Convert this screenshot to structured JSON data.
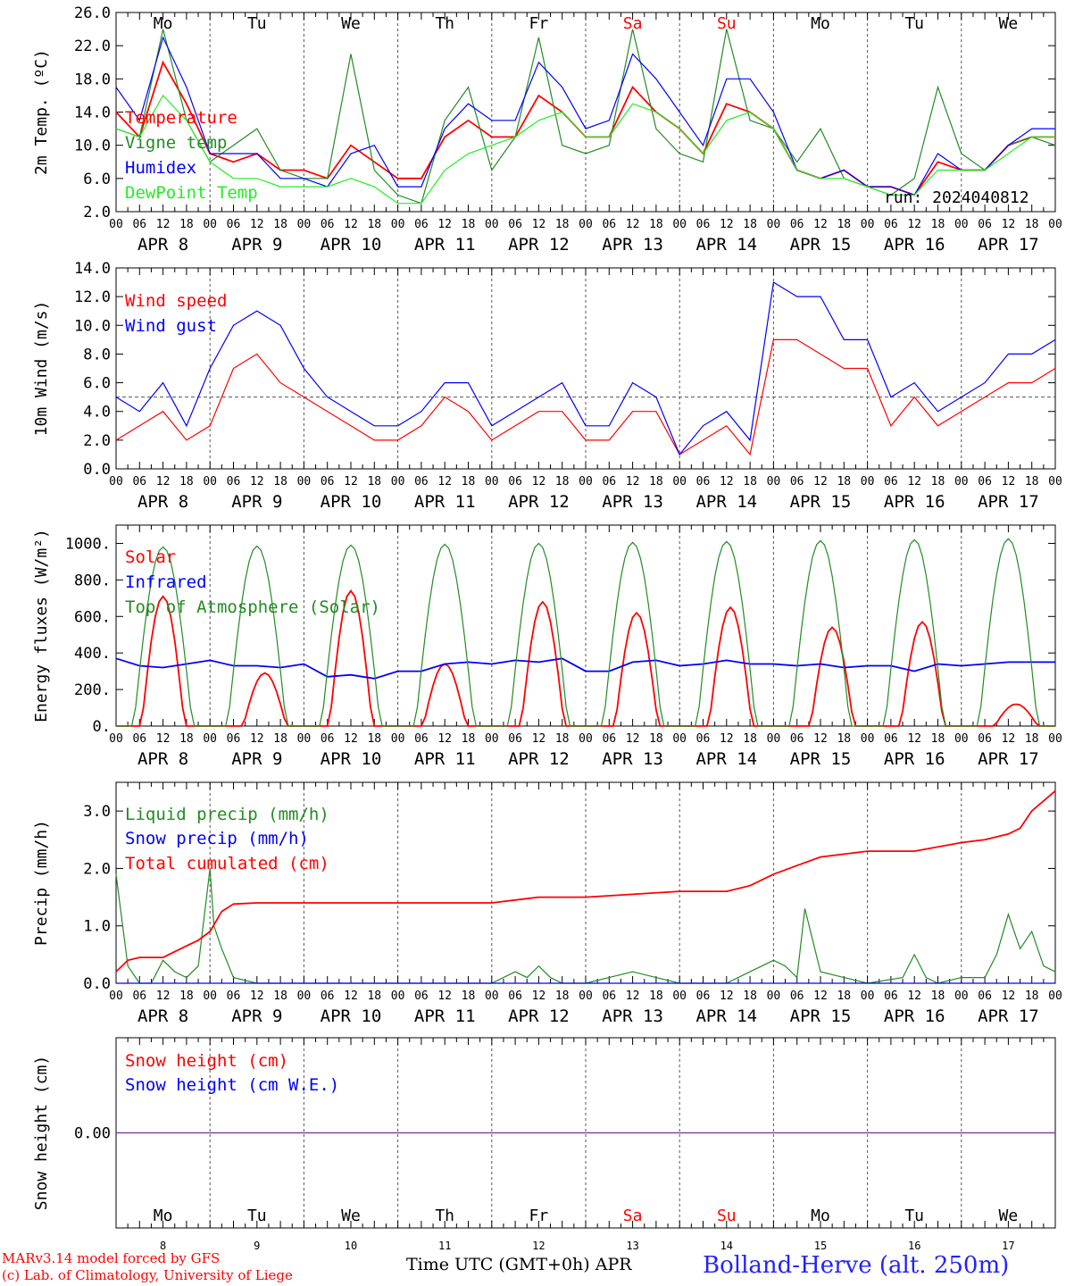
{
  "run_label": "run: 2024040812",
  "colors": {
    "red": "#ff0000",
    "green": "#228b22",
    "blue": "#0000ff",
    "lightgreen": "#22ee22",
    "purple": "#7f3f9f"
  },
  "days": [
    "Mo",
    "Tu",
    "We",
    "Th",
    "Fr",
    "Sa",
    "Su",
    "Mo",
    "Tu",
    "We"
  ],
  "day_colors": [
    "#000000",
    "#000000",
    "#000000",
    "#000000",
    "#000000",
    "#ff0000",
    "#ff0000",
    "#000000",
    "#000000",
    "#000000"
  ],
  "dates": [
    "APR  8",
    "APR  9",
    "APR 10",
    "APR 11",
    "APR 12",
    "APR 13",
    "APR 14",
    "APR 15",
    "APR 16",
    "APR 17"
  ],
  "day_numbers": [
    "8",
    "9",
    "10",
    "11",
    "12",
    "13",
    "14",
    "15",
    "16",
    "17"
  ],
  "hour_ticks": [
    "00",
    "06",
    "12",
    "18"
  ],
  "footer": {
    "model": "MARv3.14 model forced by GFS",
    "lab": "(c) Lab. of Climatology, University of Liege",
    "time_axis": "Time UTC (GMT+0h) APR",
    "station": "Bolland-Herve (alt. 250m)"
  },
  "chart_data": [
    {
      "type": "line",
      "ylabel": "2m Temp. (ºC)",
      "ylim": [
        2,
        26
      ],
      "yticks": [
        "2.0",
        "6.0",
        "10.0",
        "14.0",
        "18.0",
        "22.0",
        "26.0"
      ],
      "x_unit": "hours since APR 8 00 UTC",
      "legend": [
        "Temperature",
        "Vigne temp",
        "Humidex",
        "DewPoint Temp"
      ],
      "series": [
        {
          "name": "Temperature",
          "color": "#ff0000",
          "x": [
            0,
            6,
            12,
            18,
            24,
            30,
            36,
            42,
            48,
            54,
            60,
            66,
            72,
            78,
            84,
            90,
            96,
            102,
            108,
            114,
            120,
            126,
            132,
            138,
            144,
            150,
            156,
            162,
            168,
            174,
            180,
            186,
            192,
            198,
            204,
            210,
            216,
            222,
            228,
            234,
            240
          ],
          "values": [
            14,
            11,
            20,
            15,
            9,
            8,
            9,
            7,
            7,
            6,
            10,
            8,
            6,
            6,
            11,
            13,
            11,
            11,
            16,
            14,
            11,
            11,
            17,
            14,
            12,
            9,
            15,
            14,
            12,
            7,
            6,
            7,
            5,
            5,
            4,
            8,
            7,
            7,
            10,
            11,
            11
          ]
        },
        {
          "name": "Vigne temp",
          "color": "#228b22",
          "x": [
            0,
            6,
            12,
            18,
            24,
            30,
            36,
            42,
            48,
            54,
            60,
            66,
            72,
            78,
            84,
            90,
            96,
            102,
            108,
            114,
            120,
            126,
            132,
            138,
            144,
            150,
            156,
            162,
            168,
            174,
            180,
            186,
            192,
            198,
            204,
            210,
            216,
            222,
            228,
            234,
            240
          ],
          "values": [
            12,
            11,
            24,
            13,
            8,
            10,
            12,
            7,
            6,
            6,
            21,
            7,
            4,
            3,
            13,
            17,
            7,
            11,
            23,
            10,
            9,
            10,
            24,
            12,
            9,
            8,
            24,
            13,
            12,
            8,
            12,
            6,
            5,
            4,
            6,
            17,
            9,
            7,
            10,
            11,
            10
          ]
        },
        {
          "name": "Humidex",
          "color": "#0000ff",
          "x": [
            0,
            6,
            12,
            18,
            24,
            30,
            36,
            42,
            48,
            54,
            60,
            66,
            72,
            78,
            84,
            90,
            96,
            102,
            108,
            114,
            120,
            126,
            132,
            138,
            144,
            150,
            156,
            162,
            168,
            174,
            180,
            186,
            192,
            198,
            204,
            210,
            216,
            222,
            228,
            234,
            240
          ],
          "values": [
            17,
            13,
            23,
            17,
            9,
            9,
            9,
            6,
            6,
            5,
            9,
            10,
            5,
            5,
            12,
            15,
            13,
            13,
            20,
            17,
            12,
            13,
            21,
            18,
            14,
            10,
            18,
            18,
            14,
            7,
            6,
            7,
            5,
            5,
            4,
            9,
            7,
            7,
            10,
            12,
            12
          ]
        },
        {
          "name": "DewPoint Temp",
          "color": "#22ee22",
          "x": [
            0,
            6,
            12,
            18,
            24,
            30,
            36,
            42,
            48,
            54,
            60,
            66,
            72,
            78,
            84,
            90,
            96,
            102,
            108,
            114,
            120,
            126,
            132,
            138,
            144,
            150,
            156,
            162,
            168,
            174,
            180,
            186,
            192,
            198,
            204,
            210,
            216,
            222,
            228,
            234,
            240
          ],
          "values": [
            12,
            11,
            16,
            13,
            8,
            6,
            6,
            5,
            5,
            5,
            6,
            5,
            3,
            3,
            7,
            9,
            10,
            11,
            13,
            14,
            11,
            11,
            15,
            14,
            12,
            9,
            13,
            14,
            12,
            7,
            6,
            6,
            5,
            4,
            4,
            7,
            7,
            7,
            9,
            11,
            11
          ]
        }
      ]
    },
    {
      "type": "line",
      "ylabel": "10m Wind (m/s)",
      "ylim": [
        0,
        14
      ],
      "yticks": [
        "0.0",
        "2.0",
        "4.0",
        "6.0",
        "8.0",
        "10.0",
        "12.0",
        "14.0"
      ],
      "reference_line": 5,
      "legend": [
        "Wind speed",
        "Wind gust"
      ],
      "series": [
        {
          "name": "Wind speed",
          "color": "#ff0000",
          "x": [
            0,
            6,
            12,
            18,
            24,
            30,
            36,
            42,
            48,
            54,
            60,
            66,
            72,
            78,
            84,
            90,
            96,
            102,
            108,
            114,
            120,
            126,
            132,
            138,
            144,
            150,
            156,
            162,
            168,
            174,
            180,
            186,
            192,
            198,
            204,
            210,
            216,
            222,
            228,
            234,
            240
          ],
          "values": [
            2,
            3,
            4,
            2,
            3,
            7,
            8,
            6,
            5,
            4,
            3,
            2,
            2,
            3,
            5,
            4,
            2,
            3,
            4,
            4,
            2,
            2,
            4,
            4,
            1,
            2,
            3,
            1,
            9,
            9,
            8,
            7,
            7,
            3,
            5,
            3,
            4,
            5,
            6,
            6,
            7
          ]
        },
        {
          "name": "Wind gust",
          "color": "#0000ff",
          "x": [
            0,
            6,
            12,
            18,
            24,
            30,
            36,
            42,
            48,
            54,
            60,
            66,
            72,
            78,
            84,
            90,
            96,
            102,
            108,
            114,
            120,
            126,
            132,
            138,
            144,
            150,
            156,
            162,
            168,
            174,
            180,
            186,
            192,
            198,
            204,
            210,
            216,
            222,
            228,
            234,
            240
          ],
          "values": [
            5,
            4,
            6,
            3,
            7,
            10,
            11,
            10,
            7,
            5,
            4,
            3,
            3,
            4,
            6,
            6,
            3,
            4,
            5,
            6,
            3,
            3,
            6,
            5,
            1,
            3,
            4,
            2,
            13,
            12,
            12,
            9,
            9,
            5,
            6,
            4,
            5,
            6,
            8,
            8,
            9
          ]
        }
      ]
    },
    {
      "type": "line",
      "ylabel": "Energy fluxes (W/m²)",
      "ylim": [
        0,
        1100
      ],
      "yticks": [
        "0.",
        "200.",
        "400.",
        "600.",
        "800.",
        "1000."
      ],
      "legend": [
        "Solar",
        "Infrared",
        "Top of Atmosphere (Solar)"
      ],
      "series": [
        {
          "name": "Solar",
          "color": "#ff0000",
          "peaks": [
            710,
            290,
            740,
            340,
            680,
            620,
            650,
            540,
            570,
            120
          ],
          "peak_hours": [
            12,
            14,
            12,
            12,
            13,
            13,
            13,
            15,
            14,
            14
          ]
        },
        {
          "name": "Infrared",
          "color": "#0000ff",
          "x": [
            0,
            6,
            12,
            18,
            24,
            30,
            36,
            42,
            48,
            54,
            60,
            66,
            72,
            78,
            84,
            90,
            96,
            102,
            108,
            114,
            120,
            126,
            132,
            138,
            144,
            150,
            156,
            162,
            168,
            174,
            180,
            186,
            192,
            198,
            204,
            210,
            216,
            222,
            228,
            234,
            240
          ],
          "values": [
            370,
            330,
            320,
            340,
            360,
            330,
            330,
            320,
            340,
            270,
            280,
            260,
            300,
            300,
            340,
            350,
            340,
            360,
            350,
            370,
            300,
            300,
            350,
            360,
            330,
            340,
            360,
            340,
            340,
            330,
            340,
            320,
            330,
            330,
            300,
            340,
            330,
            340,
            350,
            350,
            350
          ]
        },
        {
          "name": "Top of Atmosphere (Solar)",
          "color": "#228b22",
          "peaks": [
            980,
            985,
            990,
            995,
            1000,
            1005,
            1010,
            1015,
            1020,
            1025
          ],
          "peak_hours": [
            12,
            12,
            12,
            12,
            12,
            12,
            12,
            12,
            12,
            12
          ]
        }
      ]
    },
    {
      "type": "line",
      "ylabel": "Precip (mm/h)",
      "ylim": [
        0,
        3.5
      ],
      "yticks": [
        "0.0",
        "1.0",
        "2.0",
        "3.0"
      ],
      "legend": [
        "Liquid precip (mm/h)",
        "Snow precip (mm/h)",
        "Total cumulated (cm)"
      ],
      "series": [
        {
          "name": "Liquid precip (mm/h)",
          "color": "#228b22",
          "x": [
            0,
            3,
            6,
            9,
            12,
            15,
            18,
            21,
            24,
            25,
            27,
            30,
            36,
            48,
            60,
            72,
            96,
            102,
            105,
            108,
            111,
            114,
            120,
            132,
            138,
            144,
            156,
            162,
            165,
            168,
            171,
            174,
            176,
            180,
            186,
            192,
            201,
            204,
            207,
            210,
            216,
            222,
            225,
            228,
            231,
            234,
            237,
            240
          ],
          "values": [
            1.9,
            0.3,
            0,
            0,
            0.4,
            0.2,
            0.1,
            0.3,
            2.0,
            1.0,
            0.6,
            0.1,
            0,
            0,
            0,
            0,
            0,
            0.2,
            0.1,
            0.3,
            0.1,
            0,
            0,
            0.2,
            0.1,
            0,
            0,
            0.2,
            0.3,
            0.4,
            0.3,
            0.1,
            1.3,
            0.2,
            0.1,
            0,
            0.1,
            0.5,
            0.1,
            0,
            0.1,
            0.1,
            0.5,
            1.2,
            0.6,
            0.9,
            0.3,
            0.2
          ]
        },
        {
          "name": "Snow precip (mm/h)",
          "color": "#0000ff",
          "x": [
            0,
            240
          ],
          "values": [
            0,
            0
          ]
        },
        {
          "name": "Total cumulated (cm)",
          "color": "#ff0000",
          "x": [
            0,
            3,
            6,
            12,
            18,
            21,
            24,
            27,
            30,
            36,
            48,
            60,
            72,
            96,
            102,
            108,
            120,
            144,
            156,
            162,
            168,
            174,
            180,
            192,
            204,
            216,
            222,
            228,
            231,
            234,
            240
          ],
          "values": [
            0.2,
            0.4,
            0.45,
            0.45,
            0.65,
            0.75,
            0.9,
            1.25,
            1.38,
            1.4,
            1.4,
            1.4,
            1.4,
            1.4,
            1.45,
            1.5,
            1.5,
            1.6,
            1.6,
            1.7,
            1.9,
            2.05,
            2.2,
            2.3,
            2.3,
            2.45,
            2.5,
            2.6,
            2.7,
            3.0,
            3.35
          ]
        }
      ]
    },
    {
      "type": "line",
      "ylabel": "Snow height (cm)",
      "yticks": [
        "0.00"
      ],
      "legend": [
        "Snow height (cm)",
        "Snow height (cm W.E.)"
      ],
      "series": [
        {
          "name": "Snow height (cm)",
          "color": "#ff0000",
          "x": [
            0,
            240
          ],
          "values": [
            0,
            0
          ]
        },
        {
          "name": "Snow height (cm W.E.)",
          "color": "#0000ff",
          "x": [
            0,
            240
          ],
          "values": [
            0,
            0
          ]
        }
      ]
    }
  ]
}
